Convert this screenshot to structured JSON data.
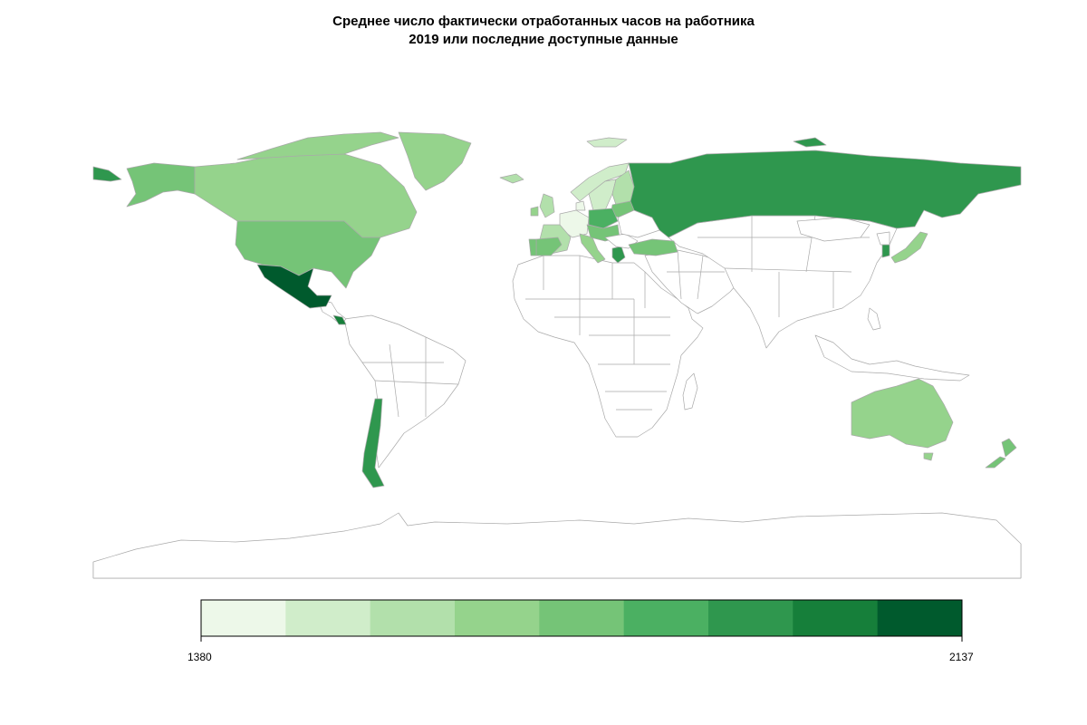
{
  "title": {
    "line1": "Среднее число фактически отработанных часов на работника",
    "line2": "2019 или последние доступные данные"
  },
  "legend": {
    "min_label": "1380",
    "max_label": "2137",
    "colors": [
      "#edf8e9",
      "#d0edca",
      "#b2e0ab",
      "#95d38c",
      "#75c477",
      "#4bb062",
      "#2f974e",
      "#167f3a",
      "#005a2d"
    ]
  },
  "chart_data": {
    "type": "choropleth",
    "variable": "Среднее число фактически отработанных часов на работника",
    "range": [
      1380,
      2137
    ],
    "bins": 9,
    "regions": [
      {
        "name": "Mexico",
        "bin": 8
      },
      {
        "name": "Costa Rica",
        "bin": 7
      },
      {
        "name": "Chile",
        "bin": 6
      },
      {
        "name": "Russia",
        "bin": 6
      },
      {
        "name": "South Korea",
        "bin": 6
      },
      {
        "name": "Greece",
        "bin": 6
      },
      {
        "name": "Poland",
        "bin": 5
      },
      {
        "name": "Turkey",
        "bin": 4
      },
      {
        "name": "United States",
        "bin": 4
      },
      {
        "name": "Alaska",
        "bin": 4
      },
      {
        "name": "Canada",
        "bin": 3
      },
      {
        "name": "Greenland",
        "bin": 3
      },
      {
        "name": "Australia",
        "bin": 3
      },
      {
        "name": "New Zealand",
        "bin": 4
      },
      {
        "name": "Japan",
        "bin": 3
      },
      {
        "name": "Spain",
        "bin": 4
      },
      {
        "name": "Portugal",
        "bin": 4
      },
      {
        "name": "Italy",
        "bin": 3
      },
      {
        "name": "France",
        "bin": 2
      },
      {
        "name": "United Kingdom",
        "bin": 2
      },
      {
        "name": "Ireland",
        "bin": 3
      },
      {
        "name": "Baltic states",
        "bin": 4
      },
      {
        "name": "Czechia / Slovakia / Hungary",
        "bin": 4
      },
      {
        "name": "Germany",
        "bin": 0
      },
      {
        "name": "Netherlands",
        "bin": 0
      },
      {
        "name": "Norway",
        "bin": 1
      },
      {
        "name": "Sweden",
        "bin": 1
      },
      {
        "name": "Finland",
        "bin": 2
      },
      {
        "name": "Denmark",
        "bin": 0
      },
      {
        "name": "Iceland",
        "bin": 2
      },
      {
        "name": "Svalbard",
        "bin": 1
      }
    ]
  }
}
